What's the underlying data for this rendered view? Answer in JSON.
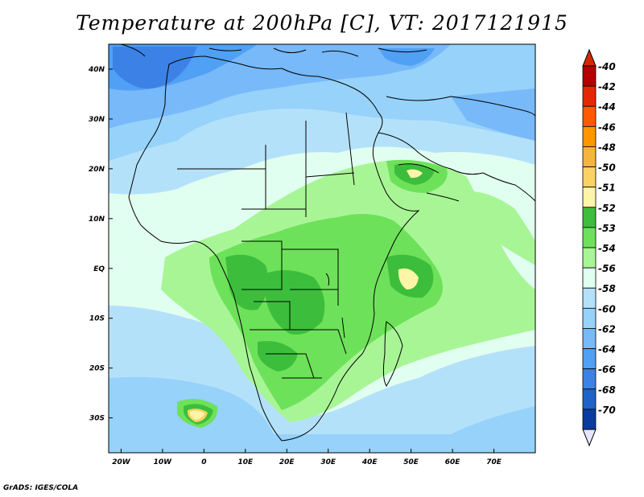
{
  "title": "Temperature at 200hPa [C], VT: 2017121915",
  "footer": "GrADS: IGES/COLA",
  "map": {
    "lon_range": [
      -23,
      80
    ],
    "lat_range": [
      -37,
      45
    ],
    "lon_ticks": [
      {
        "v": -20,
        "label": "20W"
      },
      {
        "v": -10,
        "label": "10W"
      },
      {
        "v": 0,
        "label": "0"
      },
      {
        "v": 10,
        "label": "10E"
      },
      {
        "v": 20,
        "label": "20E"
      },
      {
        "v": 30,
        "label": "30E"
      },
      {
        "v": 40,
        "label": "40E"
      },
      {
        "v": 50,
        "label": "50E"
      },
      {
        "v": 60,
        "label": "60E"
      },
      {
        "v": 70,
        "label": "70E"
      }
    ],
    "lat_ticks": [
      {
        "v": 40,
        "label": "40N"
      },
      {
        "v": 30,
        "label": "30N"
      },
      {
        "v": 20,
        "label": "20N"
      },
      {
        "v": 10,
        "label": "10N"
      },
      {
        "v": 0,
        "label": "EQ"
      },
      {
        "v": -10,
        "label": "10S"
      },
      {
        "v": -20,
        "label": "20S"
      },
      {
        "v": -30,
        "label": "30S"
      }
    ]
  },
  "legend": {
    "levels": [
      {
        "label": "-40",
        "color": "#b40000"
      },
      {
        "label": "-42",
        "color": "#e62800"
      },
      {
        "label": "-44",
        "color": "#ff5a00"
      },
      {
        "label": "-46",
        "color": "#ff9600"
      },
      {
        "label": "-48",
        "color": "#f5b43c"
      },
      {
        "label": "-50",
        "color": "#fad264"
      },
      {
        "label": "-51",
        "color": "#fff5a8"
      },
      {
        "label": "-52",
        "color": "#3cbe3c"
      },
      {
        "label": "-53",
        "color": "#6ee15a"
      },
      {
        "label": "-54",
        "color": "#a8f596"
      },
      {
        "label": "-56",
        "color": "#e1fff0"
      },
      {
        "label": "-58",
        "color": "#b4e1fa"
      },
      {
        "label": "-60",
        "color": "#96d2fa"
      },
      {
        "label": "-62",
        "color": "#78b9fa"
      },
      {
        "label": "-64",
        "color": "#50a0f5"
      },
      {
        "label": "-66",
        "color": "#3c82e6"
      },
      {
        "label": "-68",
        "color": "#1e64c8"
      },
      {
        "label": "-70",
        "color": "#0a3ca0"
      }
    ],
    "below_color": "#000a6e",
    "above_color": "#d22800",
    "under_arrow_color": "#e6e6ff"
  }
}
